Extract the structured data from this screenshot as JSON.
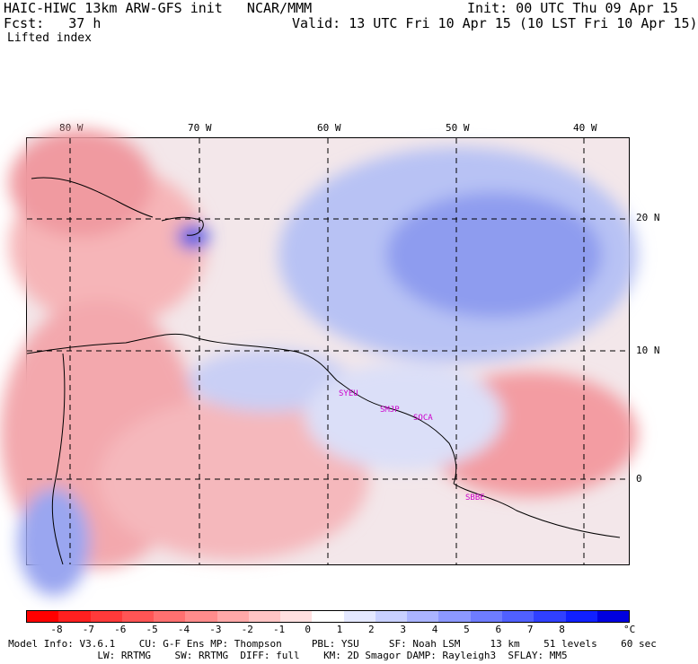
{
  "header": {
    "model_line": "HAIC-HIWC 13km ARW-GFS init   NCAR/MMM",
    "init_line": "Init: 00 UTC Thu 09 Apr 15",
    "fcst_line": "Fcst:   37 h",
    "valid_line": "Valid: 13 UTC Fri 10 Apr 15 (10 LST Fri 10 Apr 15)",
    "field_name": "Lifted index"
  },
  "map": {
    "lon_labels": [
      "80 W",
      "70 W",
      "60 W",
      "50 W",
      "40 W"
    ],
    "lat_labels": [
      "20 N",
      "10 N",
      "0"
    ],
    "place_labels": [
      "SYEU",
      "SMJP",
      "SOCA",
      "SBBE"
    ],
    "colors": {
      "land_border": "#000000",
      "grid": "#000000",
      "station_marker": "#cc00cc"
    }
  },
  "colorbar": {
    "labels": [
      "-8",
      "-7",
      "-6",
      "-5",
      "-4",
      "-3",
      "-2",
      "-1",
      "0",
      "1",
      "2",
      "3",
      "4",
      "5",
      "6",
      "7",
      "8"
    ],
    "unit": "°C",
    "colors": [
      "#ff0000",
      "#ff2020",
      "#ff3a3a",
      "#ff5555",
      "#ff7070",
      "#ff8c8c",
      "#ffa8a8",
      "#ffc4c4",
      "#ffe0e0",
      "#ffffff",
      "#e4e8ff",
      "#c8d0ff",
      "#aab4ff",
      "#8c98ff",
      "#6e7cff",
      "#5060ff",
      "#3040ff",
      "#1020ff",
      "#0000e0"
    ]
  },
  "footer": {
    "line1": "Model Info: V3.6.1    CU: G-F Ens MP: Thompson     PBL: YSU     SF: Noah LSM     13 km    51 levels    60 sec",
    "line2": "LW: RRTMG    SW: RRTMG  DIFF: full    KM: 2D Smagor DAMP: Rayleigh3  SFLAY: MM5"
  }
}
